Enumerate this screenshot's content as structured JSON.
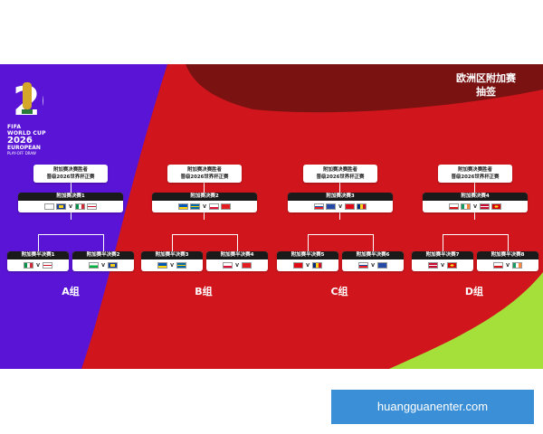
{
  "header": {
    "line1": "欧洲区附加赛",
    "line2": "抽签"
  },
  "logo": {
    "fifa": "FIFA",
    "line1": "WORLD CUP",
    "line2": "2026",
    "line3": "EUROPEAN",
    "line4": "PLAY-OFF DRAW"
  },
  "winner_label_line1": "附加赛决赛胜者",
  "winner_label_line2": "晋级2026世界杯正赛",
  "vs": "V",
  "groups": [
    {
      "label": "A组",
      "final": "附加赛决赛1",
      "semis": [
        "附加赛半决赛1",
        "附加赛半决赛2"
      ]
    },
    {
      "label": "B组",
      "final": "附加赛决赛2",
      "semis": [
        "附加赛半决赛3",
        "附加赛半决赛4"
      ]
    },
    {
      "label": "C组",
      "final": "附加赛决赛3",
      "semis": [
        "附加赛半决赛5",
        "附加赛半决赛6"
      ]
    },
    {
      "label": "D组",
      "final": "附加赛决赛4",
      "semis": [
        "附加赛半决赛7",
        "附加赛半决赛8"
      ]
    }
  ],
  "colors": {
    "purple": "#5a14d6",
    "red": "#d0161c",
    "maroon": "#7a1212",
    "lime": "#a5e03a"
  },
  "watermark": "huangguanenter.com"
}
